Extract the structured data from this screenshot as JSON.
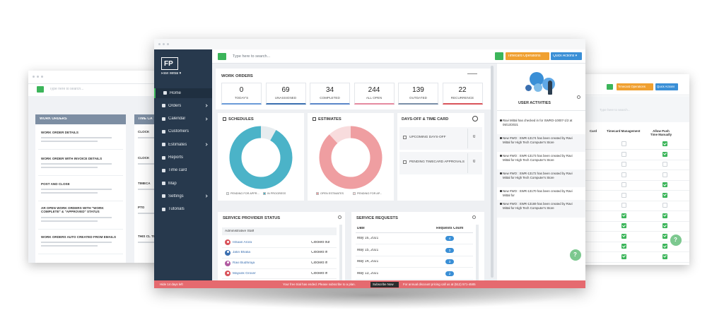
{
  "help": "?",
  "left_window": {
    "search_placeholder": "Type here to search...",
    "panel_title": "WORK ORDERS",
    "items": [
      "WORK ORDER DETAILS",
      "WORK ORDER WITH INVOICE DETAILS",
      "POST AND CLOSE",
      "AR OPEN WORK ORDERS WITH \"WORK COMPLETE\" & \"APPROVED\" STATUS",
      "WORK ORDERS AUTO CREATED FROM EMAILS"
    ],
    "second_panel_title": "TIME CA",
    "second_items": [
      "CLOCK",
      "CLOCK",
      "TIMECA",
      "PTO",
      "THIS CL TIMECA"
    ]
  },
  "right_window": {
    "buttons": [
      "Timecard Operations",
      "Quick Actions"
    ],
    "search_placeholder": "Type here to search...",
    "columns": [
      "Card",
      "Timecard Management",
      "Allow Push Time Manually"
    ],
    "rows": [
      {
        "tm": false,
        "push": true
      },
      {
        "tm": false,
        "push": true
      },
      {
        "tm": false,
        "push": false
      },
      {
        "tm": false,
        "push": false
      },
      {
        "tm": false,
        "push": true
      },
      {
        "tm": false,
        "push": true
      },
      {
        "tm": false,
        "push": false
      },
      {
        "tm": true,
        "push": true
      },
      {
        "tm": true,
        "push": true
      },
      {
        "tm": true,
        "push": true
      },
      {
        "tm": true,
        "push": true
      },
      {
        "tm": true,
        "push": true
      }
    ]
  },
  "main_window": {
    "sidebar": {
      "logo": "FP",
      "user": "Ravi Mittal ▾",
      "menu": [
        "Home",
        "Orders",
        "Calendar",
        "Customers",
        "Estimates",
        "Reports",
        "Time card",
        "Map",
        "Settings",
        "Tutorials"
      ],
      "active": 0
    },
    "topbar": {
      "search_placeholder": "Type here to search...",
      "buttons": [
        {
          "label": "Timecard Operations",
          "color": "#f0a030"
        },
        {
          "label": "Quick Actions ▾",
          "color": "#3a8fd6"
        }
      ]
    },
    "work_orders": {
      "title": "WORK ORDERS",
      "stats": [
        {
          "value": 0,
          "label": "TODAY'S",
          "color": "#6a9bd8"
        },
        {
          "value": 69,
          "label": "UNASSIGNED",
          "color": "#3a6fb0"
        },
        {
          "value": 34,
          "label": "COMPLETED",
          "color": "#5a86c8"
        },
        {
          "value": 244,
          "label": "ALL OPEN",
          "color": "#e58aa0"
        },
        {
          "value": 139,
          "label": "OUTDATED",
          "color": "#7a8fa8"
        },
        {
          "value": 22,
          "label": "RECURRENCE",
          "color": "#d9535a"
        }
      ]
    },
    "schedules": {
      "title": "SCHEDULES",
      "segments": [
        {
          "label": "PENDING FOR APPR...",
          "value": 8,
          "color": "#e6ecef"
        },
        {
          "label": "IN PROGRESS",
          "value": 92,
          "color": "#4bb3c8"
        }
      ]
    },
    "estimates": {
      "title": "ESTIMATES",
      "segments": [
        {
          "label": "OPEN ESTIMATES",
          "value": 88,
          "color": "#ef9ea1"
        },
        {
          "label": "PENDING FOR AP...",
          "value": 12,
          "color": "#f8dcdd"
        }
      ]
    },
    "days_off": {
      "title": "DAYS-OFF & TIME CARD",
      "items": [
        {
          "label": "UPCOMING DAYS-OFF",
          "value": 0
        },
        {
          "label": "PENDING TIMECARD APPROVALS",
          "value": 0
        }
      ]
    },
    "provider_status": {
      "title": "SERVICE PROVIDER STATUS",
      "group": "Administrative Staff",
      "people": [
        {
          "name": "Ishaan Arora",
          "status": "Clocked out",
          "color": "#d9535a"
        },
        {
          "name": "Jatin Bhatia",
          "status": "Clocked in",
          "color": "#3a6fb0"
        },
        {
          "name": "Ravi Budhiraja",
          "status": "Clocked in",
          "color": "#b05aa0"
        },
        {
          "name": "Mayank Grover",
          "status": "Clocked in",
          "color": "#d9535a"
        }
      ]
    },
    "service_requests": {
      "title": "SERVICE REQUESTS",
      "columns": [
        "Date",
        "Requests Count"
      ],
      "rows": [
        {
          "date": "May 16, 2021",
          "count": 4
        },
        {
          "date": "May 15, 2021",
          "count": 3
        },
        {
          "date": "May 14, 2021",
          "count": 3
        },
        {
          "date": "May 13, 2021",
          "count": 2
        }
      ]
    },
    "user_activities": {
      "title": "USER ACTIVITIES",
      "entries": [
        "Ravi Mittal has checked in for SWRO-10007-1/2 at 05/13/2021",
        "New #WO : SWR-13174 has been created by Ravi Mittal for High Tech Computer's Store",
        "New #WO : SWR-13173 has been created by Ravi Mittal for High Tech Computer's Store",
        "New #WO : SWR-13172 has been created by Ravi Mittal for High Tech Computer's Store",
        "New #WO : SWR-13170 has been created by Ravi Mittal for",
        "New #WO : SWR-13169 has been created by Ravi Mittal for High Tech Computer's Store"
      ]
    },
    "footer": {
      "left": "Hide 14 days left",
      "message": "Your free trial has ended. Please subscribe to a plan.",
      "button": "Subscribe Now",
      "right": "For annual discount pricing call us at (512) 571-4585"
    }
  }
}
